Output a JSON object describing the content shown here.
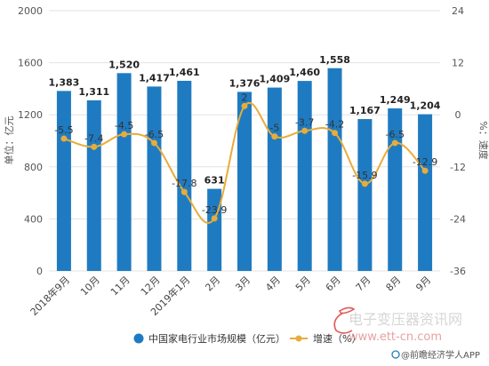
{
  "chart_data": {
    "type": "bar+line",
    "categories": [
      "2018年9月",
      "10月",
      "11月",
      "12月",
      "2019年1月",
      "2月",
      "3月",
      "4月",
      "5月",
      "6月",
      "7月",
      "8月",
      "9月"
    ],
    "series": [
      {
        "name": "中国家电行业市场规模（亿元）",
        "type": "bar",
        "axis": "left",
        "values": [
          1383,
          1311,
          1520,
          1417,
          1461,
          631,
          1376,
          1409,
          1460,
          1558,
          1167,
          1249,
          1204
        ],
        "labels": [
          "1,383",
          "1,311",
          "1,520",
          "1,417",
          "1,461",
          "631",
          "1,376",
          "1,409",
          "1,460",
          "1,558",
          "1,167",
          "1,249",
          "1,204"
        ]
      },
      {
        "name": "增速（%）",
        "type": "line",
        "axis": "right",
        "values": [
          -5.5,
          -7.4,
          -4.5,
          -6.5,
          -17.8,
          -23.9,
          2,
          -5,
          -3.7,
          -4.2,
          -15.9,
          -6.5,
          -12.9
        ],
        "labels": [
          "-5.5",
          "-7.4",
          "-4.5",
          "-6.5",
          "-17.8",
          "-23.9",
          "2",
          "-5",
          "-3.7",
          "-4.2",
          "-15.9",
          "-6.5",
          "-12.9"
        ]
      }
    ],
    "ylabel": "单位：亿元",
    "y2label": "%：速度",
    "ylim": [
      0,
      2000
    ],
    "y2lim": [
      -36,
      24
    ],
    "yticks": [
      "0",
      "400",
      "800",
      "1200",
      "1600",
      "2000"
    ],
    "y2ticks": [
      "-36",
      "-24",
      "-12",
      "0",
      "12",
      "24"
    ],
    "grid": true,
    "legend_position": "bottom",
    "colors": {
      "bar": "#1f7bc1",
      "line": "#e8ac3a"
    }
  },
  "watermark": {
    "site_name": "电子变压器资讯网",
    "site_url": "www.ett-cn.com",
    "source": "@前瞻经济学人APP"
  }
}
